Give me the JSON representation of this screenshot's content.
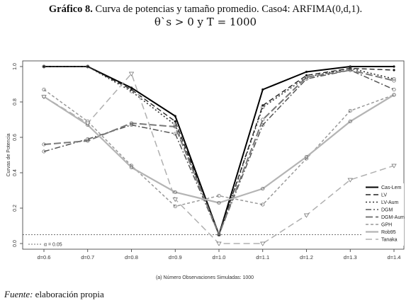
{
  "title": {
    "prefix": "Gráfico 8.",
    "rest": " Curva de potencias y tamaño promedio. Caso4: ARFIMA(0,d,1).",
    "line2": "θ`s > 0 y T  =  1000"
  },
  "source": {
    "label": "Fuente:",
    "text": " elaboración propia"
  },
  "chart_data": {
    "type": "line",
    "categories": [
      "d=0.6",
      "d=0.7",
      "d=0.8",
      "d=0.9",
      "d=1.0",
      "d=1.1",
      "d=1.2",
      "d=1.3",
      "d=1.4"
    ],
    "ylabel": "Curvas de Potencia",
    "xlabel": "(a) Número Observaciones Simuladas: 1000",
    "ylim": [
      0,
      1
    ],
    "yticks": [
      "0.0",
      "0.2",
      "0.4",
      "0.6",
      "0.8",
      "1.0"
    ],
    "hline": {
      "value": 0.05,
      "label": "α = 0.05"
    },
    "legend_position": "right",
    "series": [
      {
        "name": "Cas-Lem",
        "color": "#000000",
        "dash": "",
        "width": 2.0,
        "values": [
          1.0,
          1.0,
          0.88,
          0.72,
          0.05,
          0.87,
          0.97,
          1.0,
          1.0
        ]
      },
      {
        "name": "LV",
        "color": "#222222",
        "dash": "7,4",
        "width": 1.4,
        "values": [
          1.0,
          1.0,
          0.87,
          0.69,
          0.05,
          0.78,
          0.95,
          0.99,
          0.98
        ]
      },
      {
        "name": "LV-Aum",
        "color": "#333333",
        "dash": "2,3",
        "width": 1.6,
        "values": [
          1.0,
          1.0,
          0.86,
          0.67,
          0.05,
          0.77,
          0.94,
          0.99,
          0.93
        ]
      },
      {
        "name": "DGM",
        "color": "#555555",
        "dash": "8,3,2,3",
        "width": 1.5,
        "values": [
          0.52,
          0.59,
          0.67,
          0.62,
          0.05,
          0.67,
          0.93,
          0.98,
          0.87
        ]
      },
      {
        "name": "DGM-Aum",
        "color": "#777777",
        "dash": "10,4",
        "width": 2.0,
        "values": [
          0.56,
          0.58,
          0.68,
          0.66,
          0.05,
          0.7,
          0.94,
          0.98,
          0.92
        ]
      },
      {
        "name": "GPH",
        "color": "#999999",
        "dash": "4,3",
        "width": 1.5,
        "values": [
          0.87,
          0.69,
          0.44,
          0.21,
          0.27,
          0.22,
          0.48,
          0.75,
          0.84
        ]
      },
      {
        "name": "Rob95",
        "color": "#b4b4b4",
        "dash": "",
        "width": 2.2,
        "values": [
          0.83,
          0.67,
          0.43,
          0.29,
          0.23,
          0.31,
          0.49,
          0.69,
          0.84
        ]
      },
      {
        "name": "Tanaka",
        "color": "#b0b0b0",
        "dash": "9,5",
        "width": 1.5,
        "values": [
          0.83,
          0.68,
          0.96,
          0.25,
          0.0,
          0.0,
          0.16,
          0.36,
          0.44
        ]
      }
    ]
  }
}
